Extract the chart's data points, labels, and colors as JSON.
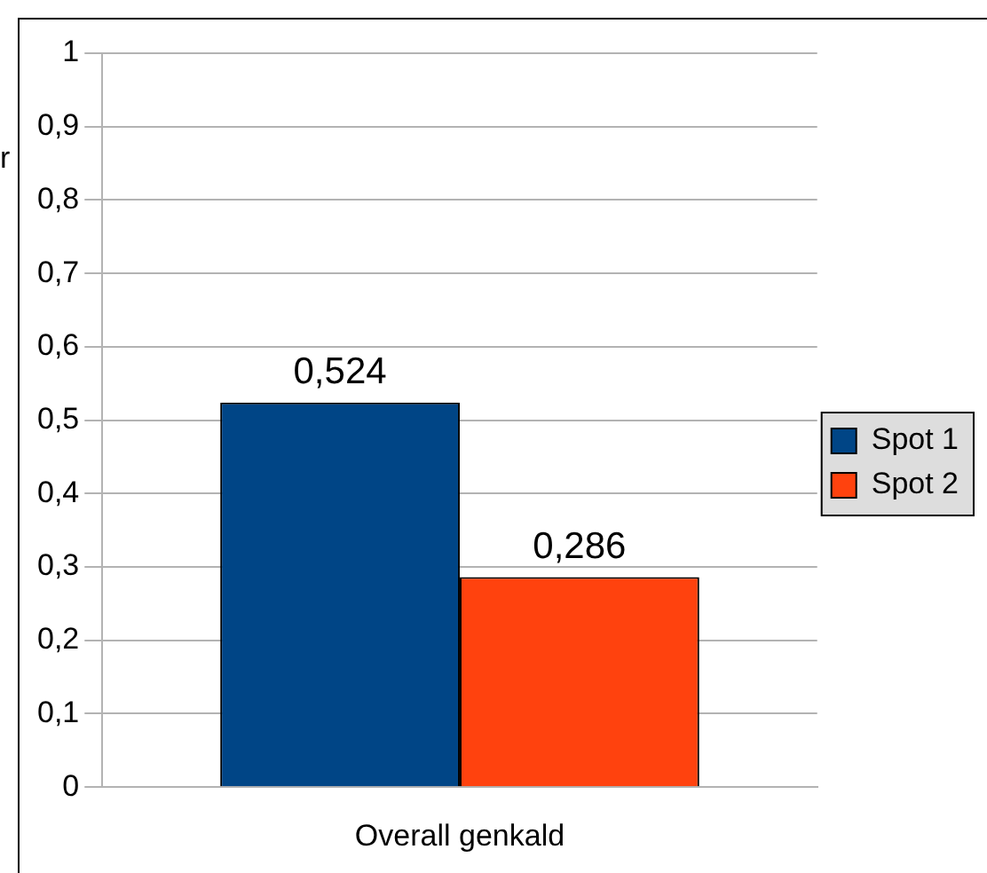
{
  "chart_data": {
    "type": "bar",
    "categories": [
      "Overall genkald"
    ],
    "series": [
      {
        "name": "Spot 1",
        "color": "#004586",
        "values": [
          0.524
        ],
        "value_labels": [
          "0,524"
        ]
      },
      {
        "name": "Spot 2",
        "color": "#ff420e",
        "values": [
          0.286
        ],
        "value_labels": [
          "0,286"
        ]
      }
    ],
    "ylim": [
      0,
      1
    ],
    "yticks": [
      0,
      {
        "value": 0.1,
        "label": "0,1"
      },
      {
        "value": 0.2,
        "label": "0,2"
      },
      {
        "value": 0.3,
        "label": "0,3"
      },
      {
        "value": 0.4,
        "label": "0,4"
      },
      {
        "value": 0.5,
        "label": "0,5"
      },
      {
        "value": 0.6,
        "label": "0,6"
      },
      {
        "value": 0.7,
        "label": "0,7"
      },
      {
        "value": 0.8,
        "label": "0,8"
      },
      {
        "value": 0.9,
        "label": "0,9"
      },
      1
    ],
    "annotations": [
      "r"
    ],
    "grid": "y",
    "legend": "right"
  }
}
